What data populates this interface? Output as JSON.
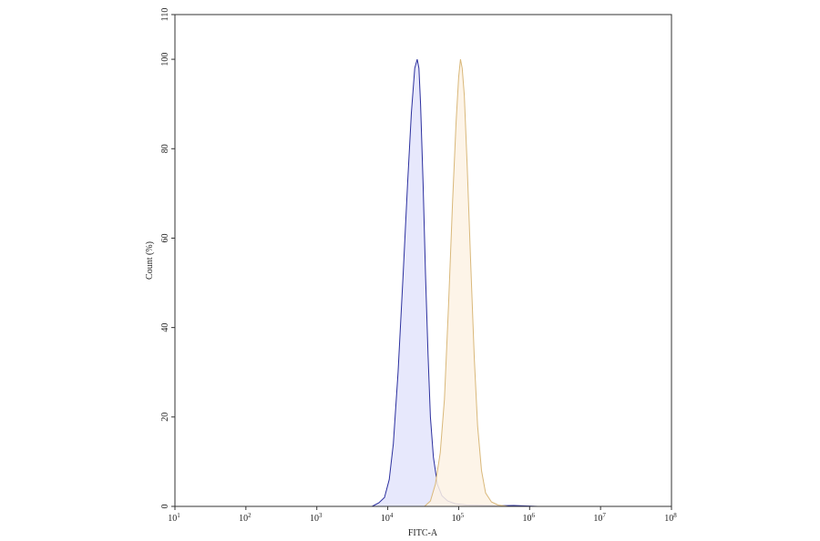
{
  "chart_data": {
    "type": "area",
    "title": "",
    "xlabel": "FITC-A",
    "ylabel": "Count (%)",
    "x_scale": "log",
    "xlim": [
      10,
      100000000
    ],
    "ylim": [
      0,
      110
    ],
    "grid": false,
    "x_ticks": [
      {
        "base": "10",
        "exp": "1",
        "value": 10
      },
      {
        "base": "10",
        "exp": "2",
        "value": 100
      },
      {
        "base": "10",
        "exp": "3",
        "value": 1000
      },
      {
        "base": "10",
        "exp": "4",
        "value": 10000
      },
      {
        "base": "10",
        "exp": "5",
        "value": 100000
      },
      {
        "base": "10",
        "exp": "6",
        "value": 1000000
      },
      {
        "base": "10",
        "exp": "7",
        "value": 10000000
      },
      {
        "base": "10",
        "exp": "8",
        "value": 100000000
      }
    ],
    "y_ticks": [
      0,
      20,
      40,
      60,
      80,
      100,
      110
    ],
    "series": [
      {
        "stroke": "#2b2f9e",
        "fill": "#e3e4fb",
        "points": [
          [
            6000,
            0
          ],
          [
            7500,
            0.8
          ],
          [
            9000,
            2
          ],
          [
            10500,
            6
          ],
          [
            12000,
            14
          ],
          [
            14000,
            30
          ],
          [
            16500,
            52
          ],
          [
            19000,
            72
          ],
          [
            21500,
            88
          ],
          [
            24000,
            98
          ],
          [
            26000,
            100
          ],
          [
            27500,
            98
          ],
          [
            29000,
            90
          ],
          [
            31500,
            72
          ],
          [
            34000,
            52
          ],
          [
            37000,
            34
          ],
          [
            40000,
            20
          ],
          [
            44000,
            11
          ],
          [
            50000,
            5
          ],
          [
            58000,
            2.4
          ],
          [
            70000,
            1.2
          ],
          [
            90000,
            0.6
          ],
          [
            130000,
            0.3
          ],
          [
            200000,
            0.25
          ],
          [
            260000,
            0.2
          ],
          [
            380000,
            0.15
          ],
          [
            600000,
            0.2
          ],
          [
            900000,
            0.1
          ],
          [
            1300000,
            0
          ]
        ]
      },
      {
        "stroke": "#d9b87a",
        "fill": "#fdf2e4",
        "points": [
          [
            33000,
            0
          ],
          [
            40000,
            1.2
          ],
          [
            47000,
            5
          ],
          [
            55000,
            12
          ],
          [
            63000,
            24
          ],
          [
            72000,
            45
          ],
          [
            82000,
            68
          ],
          [
            92000,
            86
          ],
          [
            100000,
            96
          ],
          [
            106000,
            100
          ],
          [
            112000,
            98
          ],
          [
            120000,
            92
          ],
          [
            132000,
            76
          ],
          [
            148000,
            54
          ],
          [
            166000,
            33
          ],
          [
            185000,
            18
          ],
          [
            210000,
            8
          ],
          [
            240000,
            3
          ],
          [
            290000,
            1
          ],
          [
            360000,
            0.3
          ],
          [
            500000,
            0
          ]
        ]
      }
    ]
  }
}
